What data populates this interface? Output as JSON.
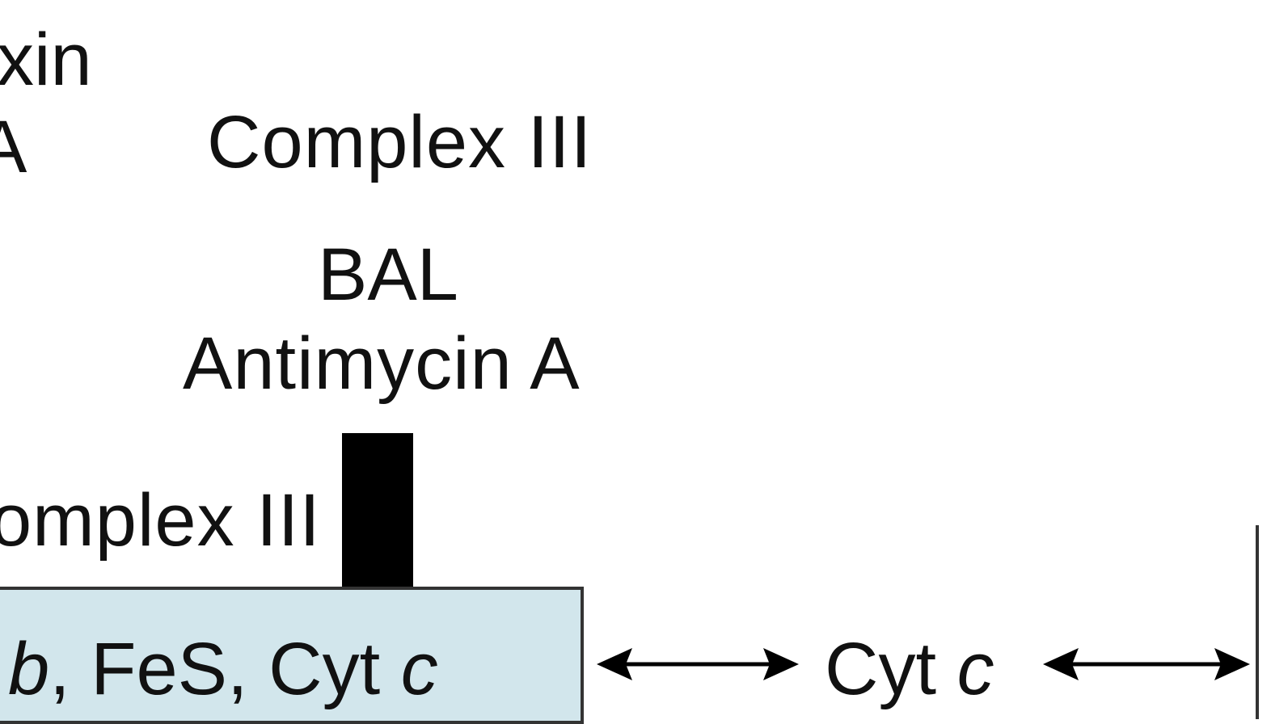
{
  "labels": {
    "top_left_partial": "xin",
    "mid_left_partial": "A",
    "complex_top": "Complex  III",
    "bal": "BAL",
    "antimycin": "Antimycin  A",
    "complex_left_partial": "omplex  III"
  },
  "complex_box": {
    "b": "b",
    "sep1": ", FeS,  Cyt ",
    "c": "c"
  },
  "cyt_c": {
    "prefix": "Cyt  ",
    "c": "c"
  },
  "colors": {
    "box_fill": "#d2e6ec",
    "box_border": "#333333",
    "inhibitor_bar": "#000000",
    "text": "#111111"
  }
}
